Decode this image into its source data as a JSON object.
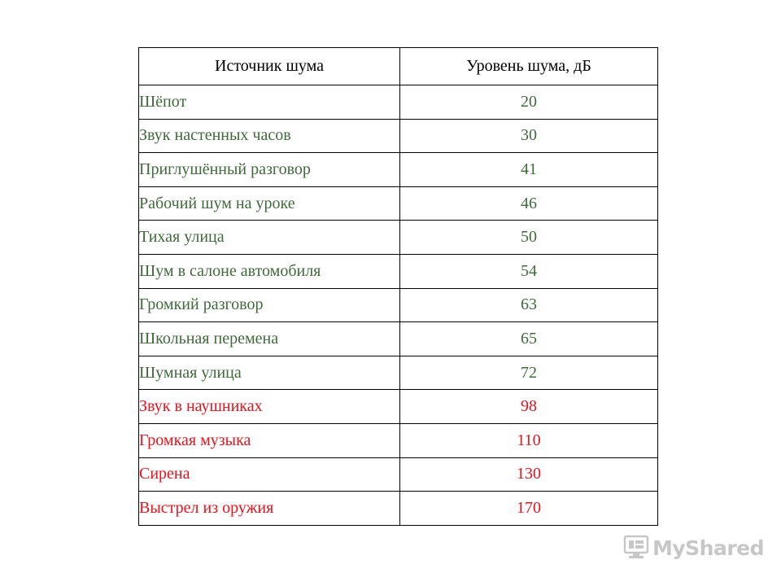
{
  "table": {
    "headers": [
      "Источник шума",
      "Уровень шума, дБ"
    ],
    "rows": [
      {
        "source": "Шёпот",
        "level": "20",
        "color": "#3f6a3a"
      },
      {
        "source": "Звук настенных часов",
        "level": "30",
        "color": "#3f6a3a"
      },
      {
        "source": "Приглушённый разговор",
        "level": "41",
        "color": "#3f6a3a"
      },
      {
        "source": "Рабочий шум на уроке",
        "level": "46",
        "color": "#3f6a3a"
      },
      {
        "source": "Тихая улица",
        "level": "50",
        "color": "#3f6a3a"
      },
      {
        "source": "Шум в салоне автомобиля",
        "level": "54",
        "color": "#3f6a3a"
      },
      {
        "source": "Громкий разговор",
        "level": "63",
        "color": "#3f6a3a"
      },
      {
        "source": "Школьная перемена",
        "level": "65",
        "color": "#3f6a3a"
      },
      {
        "source": "Шумная улица",
        "level": "72",
        "color": "#3f6a3a"
      },
      {
        "source": "Звук в наушниках",
        "level": "98",
        "color": "#e8121b"
      },
      {
        "source": "Громкая музыка",
        "level": "110",
        "color": "#e8121b"
      },
      {
        "source": "Сирена",
        "level": "130",
        "color": "#e8121b"
      },
      {
        "source": "Выстрел из оружия",
        "level": "170",
        "color": "#e8121b"
      }
    ]
  },
  "watermark": {
    "text": "MyShared",
    "icon": "mushroom-logo-icon"
  }
}
